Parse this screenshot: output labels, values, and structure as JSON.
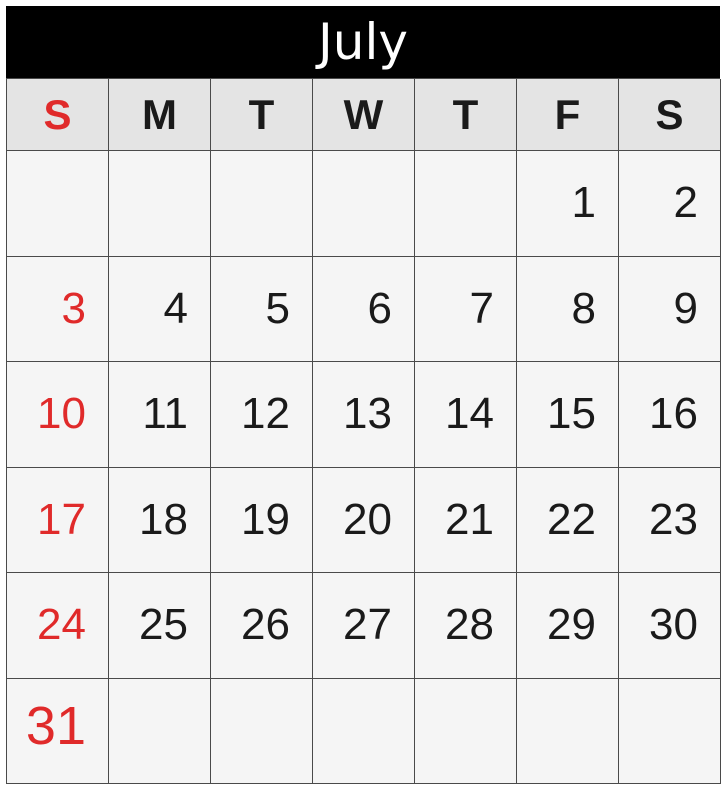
{
  "month": "July",
  "weekdays": [
    {
      "label": "S",
      "weekend_sunday": true
    },
    {
      "label": "M",
      "weekend_sunday": false
    },
    {
      "label": "T",
      "weekend_sunday": false
    },
    {
      "label": "W",
      "weekend_sunday": false
    },
    {
      "label": "T",
      "weekend_sunday": false
    },
    {
      "label": "F",
      "weekend_sunday": false
    },
    {
      "label": "S",
      "weekend_sunday": false
    }
  ],
  "weeks": [
    [
      "",
      "",
      "",
      "",
      "",
      "1",
      "2"
    ],
    [
      "3",
      "4",
      "5",
      "6",
      "7",
      "8",
      "9"
    ],
    [
      "10",
      "11",
      "12",
      "13",
      "14",
      "15",
      "16"
    ],
    [
      "17",
      "18",
      "19",
      "20",
      "21",
      "22",
      "23"
    ],
    [
      "24",
      "25",
      "26",
      "27",
      "28",
      "29",
      "30"
    ],
    [
      "31",
      "",
      "",
      "",
      "",
      "",
      ""
    ]
  ],
  "colors": {
    "header_bg": "#000000",
    "header_text": "#ffffff",
    "sunday": "#e02a2a",
    "weekday_text": "#1a1a1a",
    "dow_bg": "#e4e4e4",
    "cell_bg": "#f5f5f5",
    "grid_line": "#4a4a4a"
  }
}
